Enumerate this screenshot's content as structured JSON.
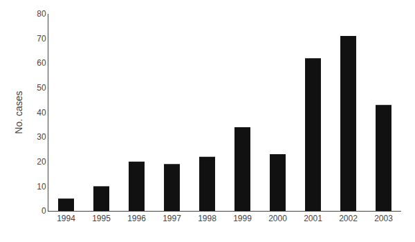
{
  "chart_data": {
    "type": "bar",
    "categories": [
      "1994",
      "1995",
      "1996",
      "1997",
      "1998",
      "1999",
      "2000",
      "2001",
      "2002",
      "2003"
    ],
    "values": [
      5,
      10,
      20,
      19,
      22,
      34,
      23,
      62,
      71,
      43
    ],
    "color": "#111111",
    "ylabel": "No. cases",
    "ylim": [
      0,
      80
    ],
    "yticks": [
      0,
      10,
      20,
      30,
      40,
      50,
      60,
      70,
      80
    ],
    "grid": false
  }
}
